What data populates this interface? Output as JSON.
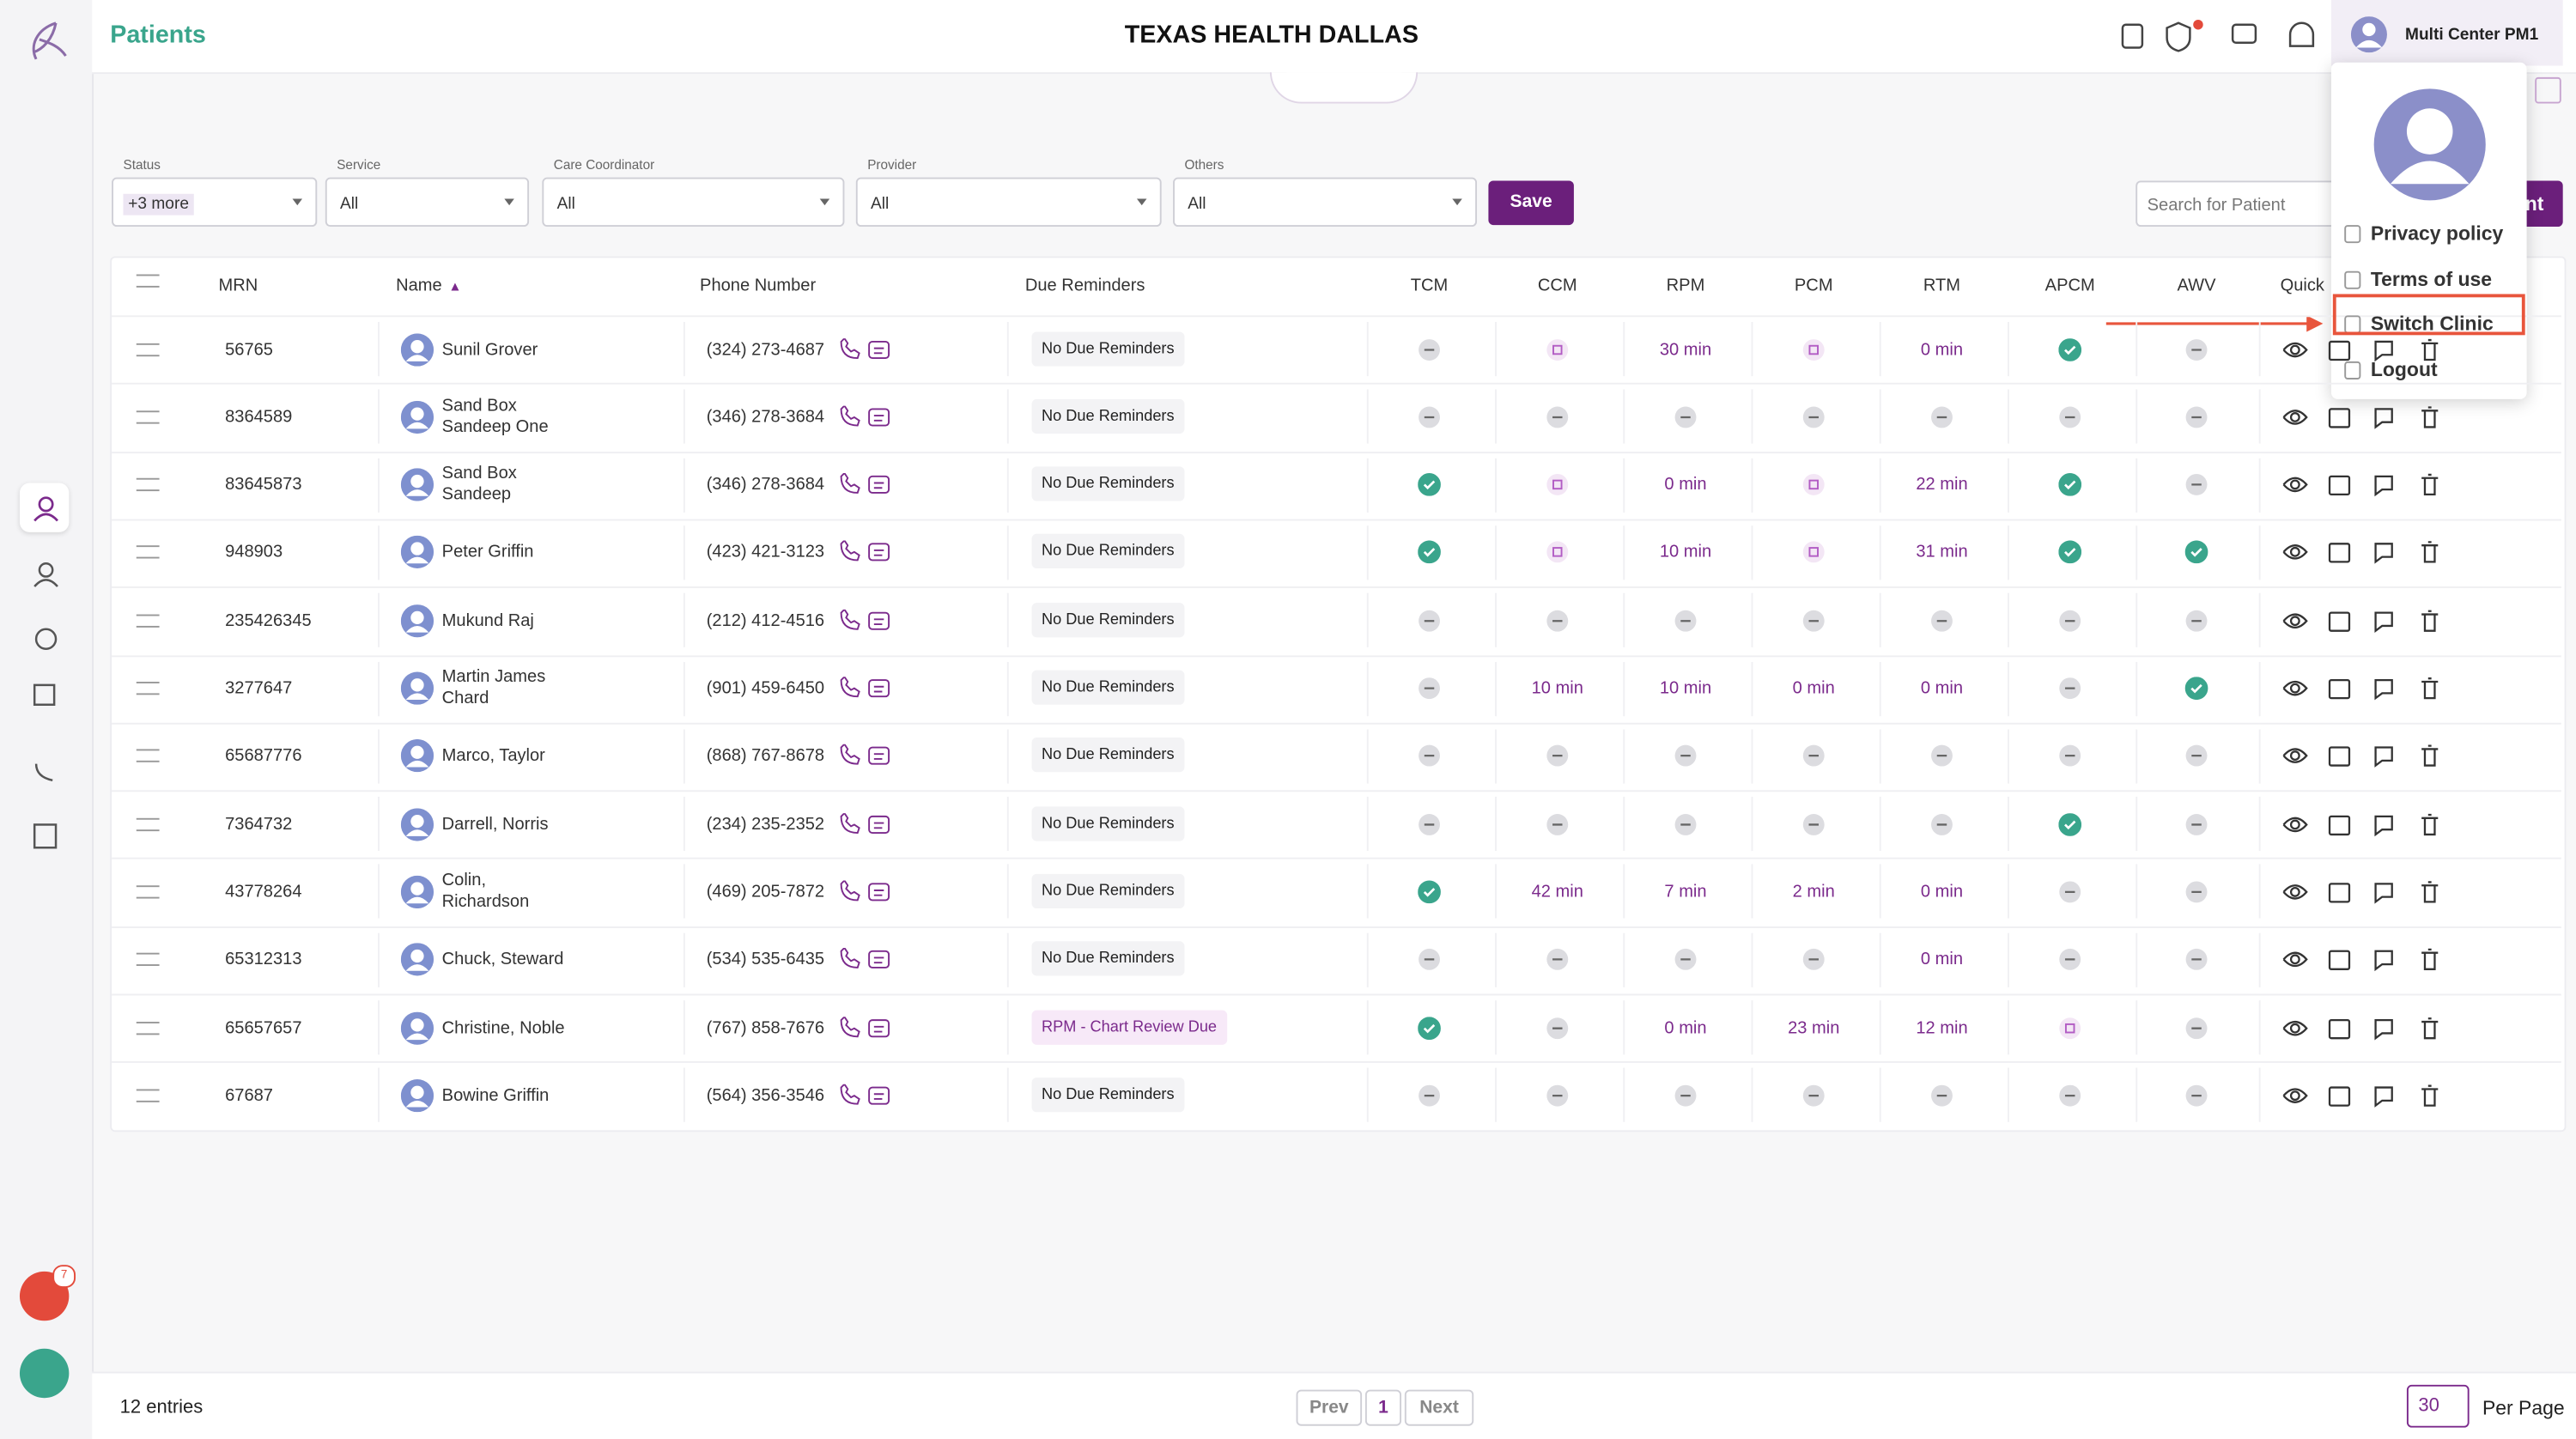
{
  "header": {
    "title": "Patients",
    "clinic": "TEXAS HEALTH DALLAS",
    "user": "Multi Center PM1"
  },
  "filters": [
    {
      "label": "Status",
      "value": "+3 more"
    },
    {
      "label": "Service",
      "value": "All"
    },
    {
      "label": "Care Coordinator",
      "value": "All"
    },
    {
      "label": "Provider",
      "value": "All"
    },
    {
      "label": "Others",
      "value": "All"
    }
  ],
  "save": "Save",
  "search_placeholder": "Search for Patient",
  "add_button": "nt",
  "table": {
    "columns": [
      "MRN",
      "Name",
      "Phone Number",
      "Due Reminders",
      "TCM",
      "CCM",
      "RPM",
      "PCM",
      "RTM",
      "APCM",
      "AWV",
      "Quick"
    ],
    "rows": [
      [
        "56765",
        "Sunil Grover",
        "(324) 273-4687",
        "No Due Reminders",
        "none",
        "pending",
        "30 min",
        "pending",
        "0 min",
        "done",
        "none"
      ],
      [
        "8364589",
        "Sand Box\nSandeep One",
        "(346) 278-3684",
        "No Due Reminders",
        "none",
        "none",
        "none",
        "none",
        "none",
        "none",
        "none"
      ],
      [
        "83645873",
        "Sand Box\nSandeep",
        "(346) 278-3684",
        "No Due Reminders",
        "done",
        "pending",
        "0 min",
        "pending",
        "22 min",
        "done",
        "none"
      ],
      [
        "948903",
        "Peter Griffin",
        "(423) 421-3123",
        "No Due Reminders",
        "done",
        "pending",
        "10 min",
        "pending",
        "31 min",
        "done",
        "done"
      ],
      [
        "235426345",
        "Mukund Raj",
        "(212) 412-4516",
        "No Due Reminders",
        "none",
        "none",
        "none",
        "none",
        "none",
        "none",
        "none"
      ],
      [
        "3277647",
        "Martin James\nChard",
        "(901) 459-6450",
        "No Due Reminders",
        "none",
        "10 min",
        "10 min",
        "0 min",
        "0 min",
        "none",
        "done"
      ],
      [
        "65687776",
        "Marco, Taylor",
        "(868) 767-8678",
        "No Due Reminders",
        "none",
        "none",
        "none",
        "none",
        "none",
        "none",
        "none"
      ],
      [
        "7364732",
        "Darrell, Norris",
        "(234) 235-2352",
        "No Due Reminders",
        "none",
        "none",
        "none",
        "none",
        "none",
        "done",
        "none"
      ],
      [
        "43778264",
        "Colin,\nRichardson",
        "(469) 205-7872",
        "No Due Reminders",
        "done",
        "42 min",
        "7 min",
        "2 min",
        "0 min",
        "none",
        "none"
      ],
      [
        "65312313",
        "Chuck, Steward",
        "(534) 535-6435",
        "No Due Reminders",
        "none",
        "none",
        "none",
        "none",
        "0 min",
        "none",
        "none"
      ],
      [
        "65657657",
        "Christine, Noble",
        "(767) 858-7676",
        "RPM - Chart Review Due",
        "done",
        "none",
        "0 min",
        "23 min",
        "12 min",
        "pending",
        "none"
      ],
      [
        "67687",
        "Bowine Griffin",
        "(564) 356-3546",
        "No Due Reminders",
        "none",
        "none",
        "none",
        "none",
        "none",
        "none",
        "none"
      ]
    ]
  },
  "menu": [
    "Privacy policy",
    "Terms of use",
    "Switch Clinic",
    "Logout"
  ],
  "highlighted_menu_item": 2,
  "notification_count": "7",
  "footer": {
    "entries": "12 entries",
    "prev": "Prev",
    "page": "1",
    "next": "Next",
    "per_page_value": "30",
    "per_page_label": "Per Page"
  }
}
